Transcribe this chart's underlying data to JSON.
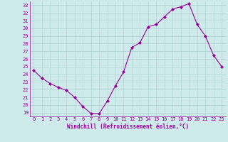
{
  "x": [
    0,
    1,
    2,
    3,
    4,
    5,
    6,
    7,
    8,
    9,
    10,
    11,
    12,
    13,
    14,
    15,
    16,
    17,
    18,
    19,
    20,
    21,
    22,
    23
  ],
  "y": [
    24.5,
    23.5,
    22.8,
    22.3,
    21.9,
    21.0,
    19.8,
    18.9,
    18.85,
    20.5,
    22.5,
    24.3,
    27.5,
    28.1,
    30.2,
    30.5,
    31.5,
    32.5,
    32.8,
    33.2,
    30.5,
    29.0,
    26.5,
    25.0
  ],
  "line_color": "#990099",
  "marker": "D",
  "marker_size": 2.0,
  "bg_color": "#ceeaea",
  "grid_color": "#b0d4d4",
  "xlabel": "Windchill (Refroidissement éolien,°C)",
  "ylim": [
    18.5,
    33.5
  ],
  "xlim": [
    -0.5,
    23.5
  ],
  "yticks": [
    19,
    20,
    21,
    22,
    23,
    24,
    25,
    26,
    27,
    28,
    29,
    30,
    31,
    32,
    33
  ],
  "xticks": [
    0,
    1,
    2,
    3,
    4,
    5,
    6,
    7,
    8,
    9,
    10,
    11,
    12,
    13,
    14,
    15,
    16,
    17,
    18,
    19,
    20,
    21,
    22,
    23
  ],
  "tick_fontsize": 5.0,
  "xlabel_fontsize": 5.5
}
